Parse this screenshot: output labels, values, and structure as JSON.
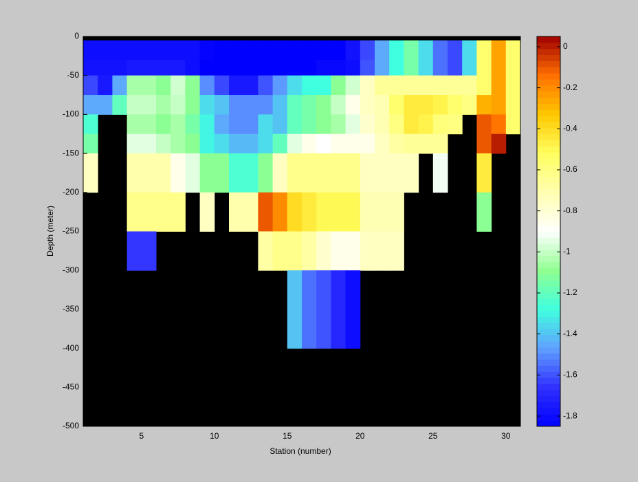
{
  "chart_data": {
    "type": "heatmap",
    "xlabel": "Station (number)",
    "ylabel": "Depth (meter)",
    "x_edges": [
      1,
      2,
      3,
      4,
      5,
      6,
      7,
      8,
      9,
      10,
      11,
      12,
      13,
      14,
      15,
      16,
      17,
      18,
      19,
      20,
      21,
      22,
      23,
      24,
      25,
      26,
      27,
      28,
      29,
      30,
      31
    ],
    "y_edges": [
      -5,
      -30,
      -50,
      -75,
      -100,
      -125,
      -150,
      -200,
      -250,
      -300,
      -400
    ],
    "values": [
      [
        -1.8,
        -1.8,
        -1.8,
        -1.8,
        -1.8,
        -1.8,
        -1.8,
        -1.8,
        -1.84,
        -1.85,
        -1.85,
        -1.85,
        -1.85,
        -1.85,
        -1.85,
        -1.85,
        -1.85,
        -1.85,
        -1.78,
        -1.62,
        -1.45,
        -1.28,
        -1.15,
        -1.35,
        -1.55,
        -1.62,
        -1.35,
        -0.55,
        -0.25,
        -0.55
      ],
      [
        -1.78,
        -1.78,
        -1.78,
        -1.75,
        -1.75,
        -1.75,
        -1.75,
        -1.8,
        -1.85,
        -1.85,
        -1.85,
        -1.85,
        -1.85,
        -1.85,
        -1.85,
        -1.85,
        -1.82,
        -1.82,
        -1.8,
        -1.6,
        -1.45,
        -1.28,
        -1.15,
        -1.35,
        -1.55,
        -1.62,
        -1.35,
        -0.55,
        -0.25,
        -0.55
      ],
      [
        -1.62,
        -1.75,
        -1.45,
        -1.05,
        -1.05,
        -1.1,
        -0.98,
        -1.1,
        -1.5,
        -1.62,
        -1.75,
        -1.75,
        -1.6,
        -1.48,
        -1.35,
        -1.28,
        -1.28,
        -1.1,
        -0.98,
        -0.75,
        -0.65,
        -0.65,
        -0.65,
        -0.65,
        -0.65,
        -0.65,
        -0.65,
        -0.55,
        -0.25,
        -0.55
      ],
      [
        -1.45,
        -1.45,
        -1.2,
        -1.0,
        -1.0,
        -1.05,
        -1.0,
        -1.1,
        -1.35,
        -1.4,
        -1.5,
        -1.5,
        -1.5,
        -1.4,
        -1.2,
        -1.15,
        -1.1,
        -1.0,
        -0.85,
        -0.75,
        -0.72,
        -0.55,
        -0.45,
        -0.45,
        -0.48,
        -0.55,
        -0.6,
        -0.28,
        -0.25,
        -0.55
      ],
      [
        -1.25,
        null,
        null,
        -1.05,
        -1.05,
        -1.1,
        -1.05,
        -1.15,
        -1.3,
        -1.45,
        -1.5,
        -1.5,
        -1.35,
        -1.4,
        -1.2,
        -1.15,
        -1.1,
        -1.05,
        -0.95,
        -0.78,
        -0.72,
        -0.6,
        -0.45,
        -0.48,
        -0.58,
        -0.6,
        null,
        -0.1,
        -0.15,
        -0.55
      ],
      [
        -1.15,
        null,
        null,
        -0.95,
        -0.95,
        -1.0,
        -1.05,
        -1.1,
        -1.3,
        -1.35,
        -1.42,
        -1.42,
        -1.35,
        -1.2,
        -0.95,
        -0.85,
        -0.9,
        -0.85,
        -0.85,
        -0.85,
        -0.75,
        -0.68,
        -0.65,
        -0.65,
        -0.65,
        null,
        null,
        -0.1,
        0.0,
        null
      ],
      [
        -0.75,
        null,
        null,
        -0.7,
        -0.7,
        -0.7,
        -0.85,
        -0.95,
        -1.1,
        -1.1,
        -1.25,
        -1.25,
        -1.1,
        -0.75,
        -0.62,
        -0.62,
        -0.62,
        -0.62,
        -0.62,
        -0.75,
        -0.75,
        -0.75,
        -0.75,
        null,
        -0.92,
        null,
        null,
        -0.45,
        null,
        null
      ],
      [
        null,
        null,
        null,
        -0.62,
        -0.62,
        -0.62,
        -0.62,
        null,
        -0.75,
        null,
        -0.7,
        -0.7,
        -0.1,
        -0.2,
        -0.4,
        -0.45,
        -0.5,
        -0.5,
        -0.5,
        -0.72,
        -0.72,
        -0.72,
        null,
        null,
        null,
        null,
        null,
        -1.1,
        null,
        null
      ],
      [
        null,
        null,
        null,
        -1.65,
        -1.65,
        null,
        null,
        null,
        null,
        null,
        null,
        null,
        -0.68,
        -0.62,
        -0.62,
        -0.68,
        -0.78,
        -0.85,
        -0.85,
        -0.75,
        -0.75,
        -0.75,
        null,
        null,
        null,
        null,
        null,
        null,
        null,
        null
      ],
      [
        null,
        null,
        null,
        null,
        null,
        null,
        null,
        null,
        null,
        null,
        null,
        null,
        null,
        null,
        -1.4,
        -1.55,
        -1.6,
        -1.7,
        -1.8,
        null,
        null,
        null,
        null,
        null,
        null,
        null,
        null,
        null,
        null,
        null
      ]
    ],
    "xlim": [
      1,
      31
    ],
    "ylim": [
      -500,
      0
    ],
    "xticks": [
      5,
      10,
      15,
      20,
      25,
      30
    ],
    "yticks": [
      0,
      -50,
      -100,
      -150,
      -200,
      -250,
      -300,
      -350,
      -400,
      -450,
      -500
    ],
    "clim": [
      -1.85,
      0.05
    ],
    "cticks": [
      0,
      -0.2,
      -0.4,
      -0.6,
      -0.8,
      -1,
      -1.2,
      -1.4,
      -1.6,
      -1.8
    ],
    "colormap": [
      "#0000ff",
      "#3030ff",
      "#60a0ff",
      "#40ffe0",
      "#90ff90",
      "#ffffff",
      "#ffffb0",
      "#ffff60",
      "#ffc800",
      "#ff7000",
      "#a00000"
    ],
    "colorbar_levels": 64,
    "background": "#000000"
  }
}
